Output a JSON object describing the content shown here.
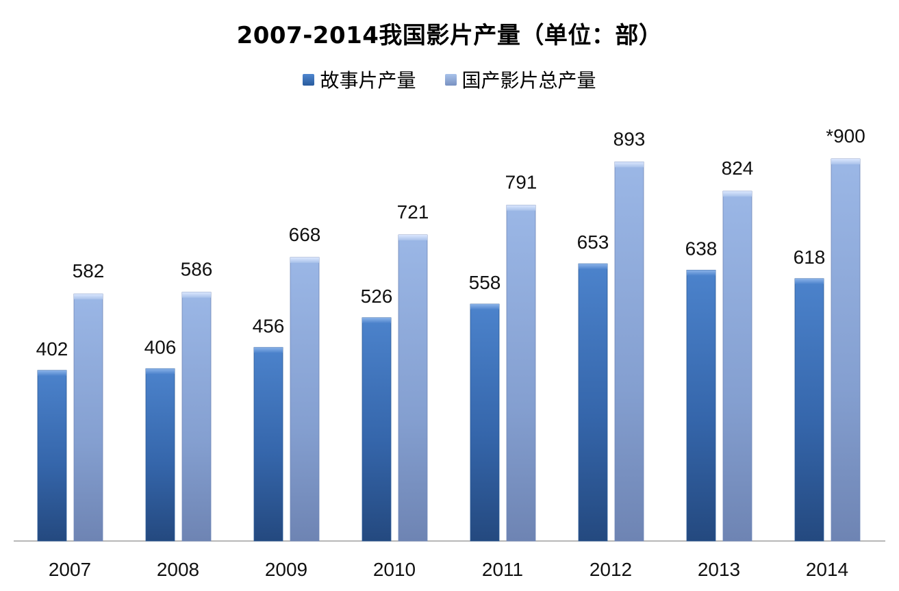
{
  "chart_data": {
    "type": "bar",
    "title": "2007-2014我国影片产量（单位：部）",
    "categories": [
      "2007",
      "2008",
      "2009",
      "2010",
      "2011",
      "2012",
      "2013",
      "2014"
    ],
    "series": [
      {
        "name": "故事片产量",
        "values": [
          402,
          406,
          456,
          526,
          558,
          653,
          638,
          618
        ],
        "labels": [
          "402",
          "406",
          "456",
          "526",
          "558",
          "653",
          "638",
          "618"
        ],
        "color": "#3b6fbb"
      },
      {
        "name": "国产影片总产量",
        "values": [
          582,
          586,
          668,
          721,
          791,
          893,
          824,
          900
        ],
        "labels": [
          "582",
          "586",
          "668",
          "721",
          "791",
          "893",
          "824",
          "*900"
        ],
        "color": "#8ea9d8"
      }
    ],
    "xlabel": "",
    "ylabel": "",
    "ylim": [
      0,
      1000
    ],
    "grid": false,
    "legend": "top-center"
  }
}
